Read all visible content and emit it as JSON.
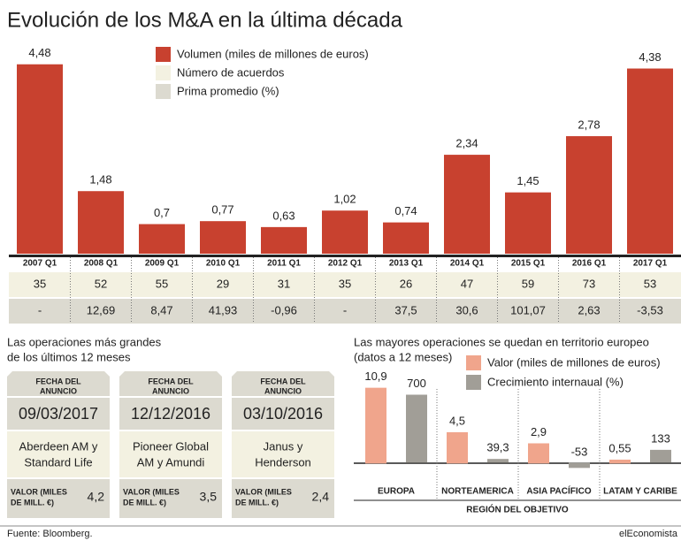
{
  "title": "Evolución de los M&A en la última década",
  "chart_data": [
    {
      "type": "bar",
      "categories": [
        "2007 Q1",
        "2008 Q1",
        "2009 Q1",
        "2010 Q1",
        "2011 Q1",
        "2012 Q1",
        "2013 Q1",
        "2014 Q1",
        "2015 Q1",
        "2016 Q1",
        "2017 Q1"
      ],
      "series": [
        {
          "name": "Volumen (miles de millones de euros)",
          "color": "#c8412f",
          "values": [
            4.48,
            1.48,
            0.7,
            0.77,
            0.63,
            1.02,
            0.74,
            2.34,
            1.45,
            2.78,
            4.38
          ],
          "value_labels": [
            "4,48",
            "1,48",
            "0,7",
            "0,77",
            "0,63",
            "1,02",
            "0,74",
            "2,34",
            "1,45",
            "2,78",
            "4,38"
          ]
        }
      ],
      "ylim": [
        0,
        4.6
      ]
    },
    {
      "type": "bar",
      "title": [
        "Las mayores operaciones se quedan en territorio europeo",
        "(datos a 12 meses)"
      ],
      "x_label": "REGIÓN DEL OBJETIVO",
      "categories": [
        "EUROPA",
        "NORTEAMERICA",
        "ASIA PACÍFICO",
        "LATAM Y CARIBE"
      ],
      "series": [
        {
          "name": "Valor (miles de millones de euros)",
          "color": "#f0a58c",
          "values": [
            10.9,
            4.5,
            2.9,
            0.55
          ],
          "value_labels": [
            "10,9",
            "4,5",
            "2,9",
            "0,55"
          ]
        },
        {
          "name": "Crecimiento internaual (%)",
          "color": "#a19e97",
          "axis": "y2",
          "values": [
            700,
            39.3,
            -53,
            133
          ],
          "value_labels": [
            "700",
            "39,3",
            "-53",
            "133"
          ]
        }
      ],
      "ylim": [
        -2,
        12
      ],
      "y2lim": [
        -150,
        850
      ]
    }
  ],
  "table": {
    "rows": [
      {
        "name": "Número de acuerdos",
        "color": "#f3f1e1",
        "values": [
          "35",
          "52",
          "55",
          "29",
          "31",
          "35",
          "26",
          "47",
          "59",
          "73",
          "53"
        ]
      },
      {
        "name": "Prima promedio (%)",
        "color": "#dcdad0",
        "values": [
          "-",
          "12,69",
          "8,47",
          "41,93",
          "-0,96",
          "-",
          "37,5",
          "30,6",
          "101,07",
          "2,63",
          "-3,53"
        ]
      }
    ]
  },
  "deals": {
    "title": [
      "Las operaciones más grandes",
      "de los últimos 12 meses"
    ],
    "header": [
      "FECHA DEL",
      "ANUNCIO"
    ],
    "value_label": [
      "VALOR (MILES",
      "DE MILL. €)"
    ],
    "items": [
      {
        "date": "09/03/2017",
        "parties": [
          "Aberdeen AM y",
          "Standard Life"
        ],
        "value": "4,2"
      },
      {
        "date": "12/12/2016",
        "parties": [
          "Pioneer Global",
          "AM y Amundi"
        ],
        "value": "3,5"
      },
      {
        "date": "03/10/2016",
        "parties": [
          "Janus y",
          "Henderson"
        ],
        "value": "2,4"
      }
    ]
  },
  "source": "Fuente: Bloomberg.",
  "brand": "elEconomista"
}
